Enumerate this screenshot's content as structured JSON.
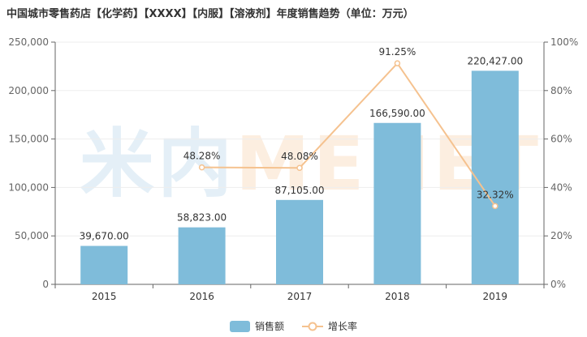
{
  "title": "中国城市零售药店【化学药】【XXXX】【内服】【溶液剂】年度销售趋势（单位：万元）",
  "watermark": {
    "part1": "米内",
    "part2": "MENET"
  },
  "colors": {
    "bar": "#7fbcda",
    "line": "#f5c28f",
    "axis": "#666666",
    "grid": "#eeeeee",
    "text": "#333333"
  },
  "chart_data": {
    "type": "bar",
    "categories": [
      "2015",
      "2016",
      "2017",
      "2018",
      "2019"
    ],
    "series": [
      {
        "name": "销售额",
        "type": "bar",
        "axis": "left",
        "values": [
          39670.0,
          58823.0,
          87105.0,
          166590.0,
          220427.0
        ],
        "labels": [
          "39,670.00",
          "58,823.00",
          "87,105.00",
          "166,590.00",
          "220,427.00"
        ]
      },
      {
        "name": "增长率",
        "type": "line",
        "axis": "right",
        "values": [
          null,
          48.28,
          48.08,
          91.25,
          32.32
        ],
        "labels": [
          "",
          "48.28%",
          "48.08%",
          "91.25%",
          "32.32%"
        ]
      }
    ],
    "ylim_left": [
      0,
      250000
    ],
    "yticks_left": [
      "0",
      "50,000",
      "100,000",
      "150,000",
      "200,000",
      "250,000"
    ],
    "ylim_right": [
      0,
      100
    ],
    "yticks_right": [
      "0%",
      "20%",
      "40%",
      "60%",
      "80%",
      "100%"
    ],
    "grid": true,
    "legend": "bottom-center"
  }
}
